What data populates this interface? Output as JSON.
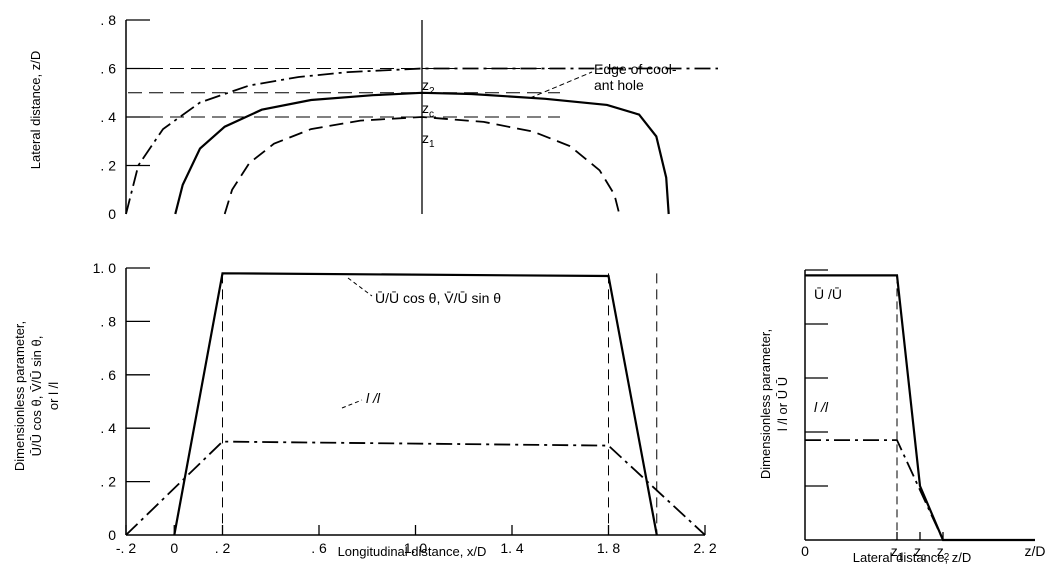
{
  "chart_data": [
    {
      "id": "top",
      "type": "line",
      "ylabel": "Lateral distance,  z/D",
      "xlim": [
        -0.2,
        2.2
      ],
      "ylim": [
        0,
        0.8
      ],
      "y_ticks": [
        "0",
        ". 2",
        ". 4",
        ". 6",
        ". 8"
      ],
      "y_tick_values": [
        0,
        0.2,
        0.4,
        0.6,
        0.8
      ],
      "grid": false,
      "series": [
        {
          "style": "dash-dot",
          "x": [
            -0.2,
            -0.15,
            -0.05,
            0.1,
            0.3,
            0.5,
            0.7,
            0.9,
            1.0,
            1.2,
            1.5,
            1.8,
            2.1,
            2.2
          ],
          "y": [
            0,
            0.2,
            0.35,
            0.46,
            0.53,
            0.565,
            0.585,
            0.595,
            0.6,
            0.6,
            0.6,
            0.6,
            0.6,
            0.6
          ]
        },
        {
          "style": "solid",
          "x": [
            0.0,
            0.03,
            0.1,
            0.2,
            0.35,
            0.55,
            0.8,
            1.0,
            1.2,
            1.5,
            1.75,
            1.88,
            1.95,
            1.99,
            2.0
          ],
          "y": [
            0,
            0.12,
            0.27,
            0.36,
            0.43,
            0.47,
            0.49,
            0.5,
            0.495,
            0.475,
            0.45,
            0.41,
            0.32,
            0.15,
            0
          ]
        },
        {
          "style": "dashed",
          "x": [
            0.2,
            0.23,
            0.3,
            0.4,
            0.55,
            0.75,
            1.0,
            1.25,
            1.45,
            1.6,
            1.72,
            1.78,
            1.8
          ],
          "y": [
            0,
            0.1,
            0.21,
            0.29,
            0.35,
            0.385,
            0.4,
            0.38,
            0.34,
            0.28,
            0.18,
            0.08,
            0
          ]
        }
      ],
      "reference_lines": [
        {
          "type": "horizontal",
          "style": "dashed",
          "y": 0.6
        },
        {
          "type": "horizontal",
          "style": "dashed",
          "y": 0.5
        },
        {
          "type": "horizontal",
          "style": "dashed",
          "y": 0.4
        },
        {
          "type": "vertical",
          "style": "solid",
          "x": 1.0
        }
      ],
      "annotations": {
        "z2": "z",
        "z2_sub": "2",
        "zc": "z",
        "zc_sub": "c",
        "z1": "z",
        "z1_sub": "1",
        "edge_line1": "Edge of cool-",
        "edge_line2": "ant hole"
      }
    },
    {
      "id": "bottom-left",
      "type": "line",
      "xlabel": "Longitudinal distance,  x/D",
      "ylabel_lines": [
        "Dimensionless parameter,",
        "Ū/Ū  cos θ,  V̄/Ū  sin θ,",
        "or  l  /l"
      ],
      "xlim": [
        -0.2,
        2.2
      ],
      "ylim": [
        0,
        1.0
      ],
      "x_ticks": [
        "-. 2",
        "0",
        ". 2",
        ". 6",
        "1. 0",
        "1. 4",
        "1. 8",
        "2. 2"
      ],
      "x_tick_values": [
        -0.2,
        0,
        0.2,
        0.6,
        1.0,
        1.4,
        1.8,
        2.2
      ],
      "y_ticks": [
        "0",
        ". 2",
        ". 4",
        ". 6",
        ". 8",
        "1. 0"
      ],
      "y_tick_values": [
        0,
        0.2,
        0.4,
        0.6,
        0.8,
        1.0
      ],
      "grid": false,
      "series": [
        {
          "style": "solid",
          "x": [
            0.0,
            0.2,
            1.8,
            2.0
          ],
          "y": [
            0,
            0.98,
            0.97,
            0
          ]
        },
        {
          "style": "dash-dot",
          "x": [
            -0.2,
            0.2,
            1.8,
            2.2
          ],
          "y": [
            0,
            0.35,
            0.335,
            0
          ]
        }
      ],
      "reference_lines": [
        {
          "type": "vertical",
          "style": "dashed",
          "x": 0.2
        },
        {
          "type": "vertical",
          "style": "dashed",
          "x": 1.8
        },
        {
          "type": "vertical",
          "style": "dashed",
          "x": 2.0
        }
      ],
      "annotations": {
        "velocity_label": "Ū/Ū  cos θ,  V̄/Ū  sin θ",
        "length_label": "l  /l"
      }
    },
    {
      "id": "bottom-right",
      "type": "line",
      "xlabel": "Lateral distance,  z/D",
      "ylabel_lines": [
        "Dimensionless parameter,",
        "l  /l    or  Ū  Ū"
      ],
      "x_ticks": [
        "0",
        "z",
        "z",
        "z",
        "z/D"
      ],
      "x_tick_subs": [
        "",
        "1",
        "c",
        "2",
        ""
      ],
      "x_tick_values": [
        0,
        0.4,
        0.5,
        0.6,
        1.0
      ],
      "xlim": [
        0,
        1.0
      ],
      "ylim": [
        0,
        1.0
      ],
      "grid": false,
      "series": [
        {
          "style": "solid",
          "x": [
            0.0,
            0.4,
            0.5,
            0.6,
            1.0
          ],
          "y": [
            0.98,
            0.98,
            0.2,
            0.0,
            0.0
          ]
        },
        {
          "style": "dash-dot",
          "x": [
            0.0,
            0.4,
            0.6,
            1.0
          ],
          "y": [
            0.37,
            0.37,
            0.0,
            0.0
          ]
        }
      ],
      "reference_lines": [
        {
          "type": "vertical",
          "style": "dashed",
          "x": 0.4
        }
      ],
      "annotations": {
        "velocity_label": "Ū  /Ū",
        "length_label": "l  /l"
      }
    }
  ]
}
